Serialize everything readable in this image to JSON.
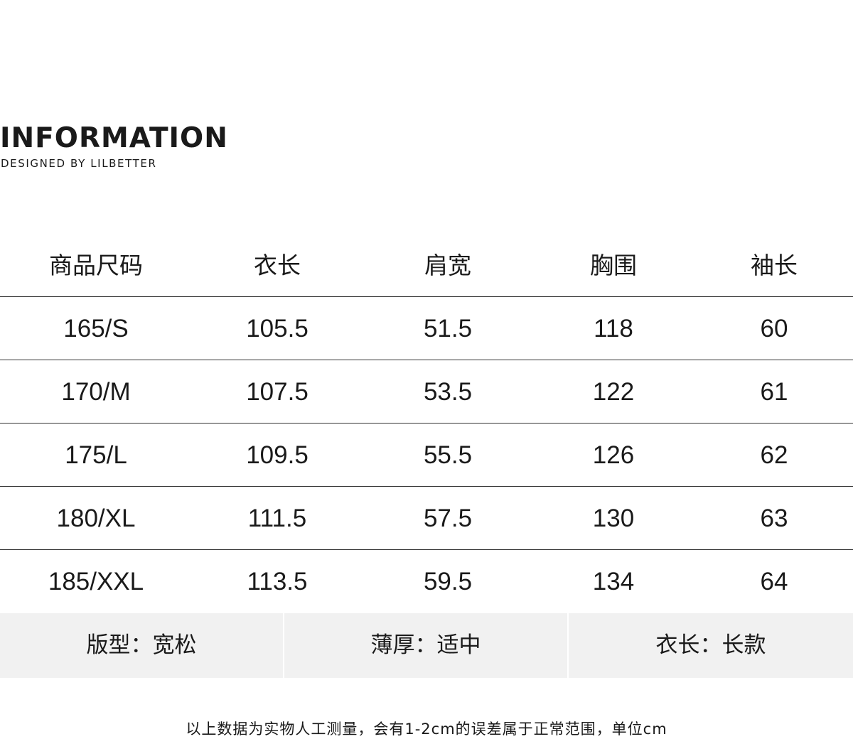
{
  "heading": {
    "title": "INFORMATION",
    "subtitle": "DESIGNED BY LILBETTER"
  },
  "table": {
    "headers": [
      "商品尺码",
      "衣长",
      "肩宽",
      "胸围",
      "袖长"
    ],
    "rows": [
      [
        "165/S",
        "105.5",
        "51.5",
        "118",
        "60"
      ],
      [
        "170/M",
        "107.5",
        "53.5",
        "122",
        "61"
      ],
      [
        "175/L",
        "109.5",
        "55.5",
        "126",
        "62"
      ],
      [
        "180/XL",
        "111.5",
        "57.5",
        "130",
        "63"
      ],
      [
        "185/XXL",
        "113.5",
        "59.5",
        "134",
        "64"
      ]
    ]
  },
  "attributes": [
    "版型：宽松",
    "薄厚：适中",
    "衣长：长款"
  ],
  "note": "以上数据为实物人工测量，会有1-2cm的误差属于正常范围，单位cm"
}
